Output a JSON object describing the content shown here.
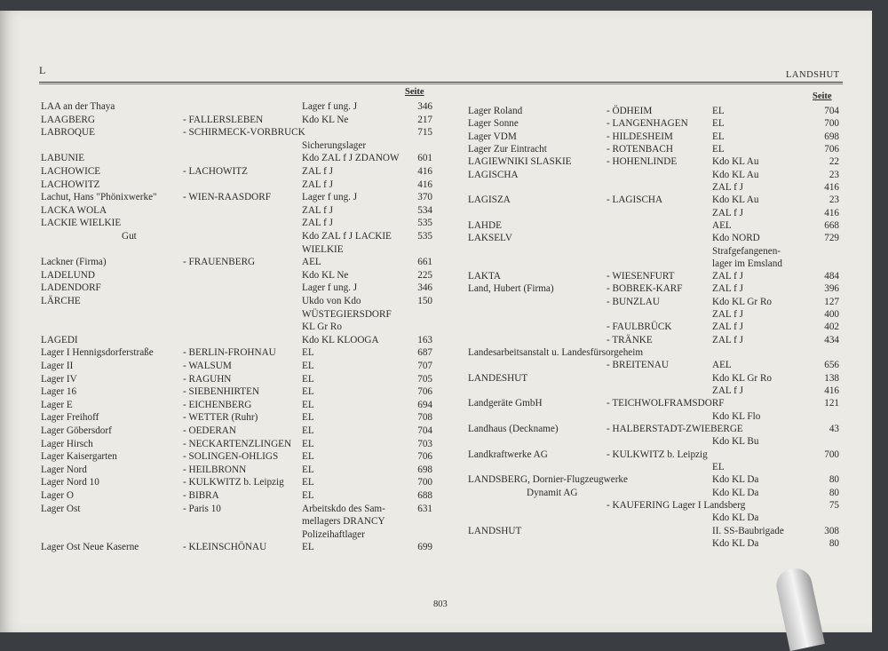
{
  "header": {
    "letter": "L",
    "running_head": "LANDSHUT"
  },
  "column_header": "Seite",
  "footer": {
    "page_number": "803"
  },
  "left_column": [
    [
      "LAA an der Thaya",
      "",
      "Lager f ung. J",
      "346"
    ],
    [
      "LAAGBERG",
      "- FALLERSLEBEN",
      "Kdo KL Ne",
      "217"
    ],
    [
      "LABROQUE",
      "- SCHIRMECK-VORBRUCK",
      "",
      "715"
    ],
    [
      "",
      "",
      "Sicherungslager",
      ""
    ],
    [
      "LABUNIE",
      "",
      "Kdo ZAL f J ZDANOW",
      "601"
    ],
    [
      "LACHOWICE",
      "- LACHOWITZ",
      "ZAL f J",
      "416"
    ],
    [
      "LACHOWITZ",
      "",
      "ZAL f J",
      "416"
    ],
    [
      "Lachut, Hans \"Phönixwerke\"",
      "- WIEN-RAASDORF",
      "Lager f ung. J",
      "370"
    ],
    [
      "LACKA WOLA",
      "",
      "ZAL f J",
      "534"
    ],
    [
      "LACKIE WIELKIE",
      "",
      "ZAL f J",
      "535"
    ],
    [
      "Gut",
      "",
      "Kdo ZAL f J LACKIE",
      "535"
    ],
    [
      "",
      "",
      "WIELKIE",
      ""
    ],
    [
      "Lackner (Firma)",
      "- FRAUENBERG",
      "AEL",
      "661"
    ],
    [
      "LADELUND",
      "",
      "Kdo KL Ne",
      "225"
    ],
    [
      "LADENDORF",
      "",
      "Lager f ung. J",
      "346"
    ],
    [
      "LÄRCHE",
      "",
      "Ukdo von Kdo",
      "150"
    ],
    [
      "",
      "",
      "WÜSTEGIERSDORF",
      ""
    ],
    [
      "",
      "",
      "KL Gr Ro",
      ""
    ],
    [
      "LAGEDI",
      "",
      "Kdo KL KLOOGA",
      "163"
    ],
    [
      "Lager I Hennigsdorferstraße",
      "- BERLIN-FROHNAU",
      "EL",
      "687"
    ],
    [
      "Lager II",
      "- WALSUM",
      "EL",
      "707"
    ],
    [
      "Lager IV",
      "- RAGUHN",
      "EL",
      "705"
    ],
    [
      "Lager 16",
      "- SIEBENHIRTEN",
      "EL",
      "706"
    ],
    [
      "Lager E",
      "- EICHENBERG",
      "EL",
      "694"
    ],
    [
      "Lager Freihoff",
      "- WETTER (Ruhr)",
      "EL",
      "708"
    ],
    [
      "Lager Göbersdorf",
      "- OEDERAN",
      "EL",
      "704"
    ],
    [
      "Lager Hirsch",
      "- NECKARTENZLINGEN",
      "EL",
      "703"
    ],
    [
      "Lager Kaisergarten",
      "- SOLINGEN-OHLIGS",
      "EL",
      "706"
    ],
    [
      "Lager Nord",
      "- HEILBRONN",
      "EL",
      "698"
    ],
    [
      "Lager Nord 10",
      "- KULKWITZ b. Leipzig",
      "EL",
      "700"
    ],
    [
      "Lager O",
      "- BIBRA",
      "EL",
      "688"
    ],
    [
      "Lager Ost",
      "- Paris 10",
      "Arbeitskdo des Sam-",
      "631"
    ],
    [
      "",
      "",
      "mellagers DRANCY",
      ""
    ],
    [
      "",
      "",
      "Polizeihaftlager",
      ""
    ],
    [
      "Lager  Ost Neue Kaserne",
      "- KLEINSCHÖNAU",
      "EL",
      "699"
    ]
  ],
  "right_column": [
    [
      "Lager Roland",
      "- ÖDHEIM",
      "EL",
      "704"
    ],
    [
      "Lager Sonne",
      "- LANGENHAGEN",
      "EL",
      "700"
    ],
    [
      "Lager VDM",
      "- HILDESHEIM",
      "EL",
      "698"
    ],
    [
      "Lager Zur Eintracht",
      "- ROTENBACH",
      "EL",
      "706"
    ],
    [
      "LAGIEWNIKI SLASKIE",
      "- HOHENLINDE",
      "Kdo KL Au",
      "22"
    ],
    [
      "LAGISCHA",
      "",
      "Kdo KL Au",
      "23"
    ],
    [
      "",
      "",
      "ZAL f J",
      "416"
    ],
    [
      "LAGISZA",
      "- LAGISCHA",
      "Kdo KL Au",
      "23"
    ],
    [
      "",
      "",
      "ZAL f J",
      "416"
    ],
    [
      "LAHDE",
      "",
      "AEL",
      "668"
    ],
    [
      "LAKSELV",
      "",
      "Kdo NORD",
      "729"
    ],
    [
      "",
      "",
      "Strafgefangenen-",
      ""
    ],
    [
      "",
      "",
      "lager im Emsland",
      ""
    ],
    [
      "LAKTA",
      "- WIESENFURT",
      "ZAL f J",
      "484"
    ],
    [
      "Land, Hubert (Firma)",
      "- BOBREK-KARF",
      "ZAL f J",
      "396"
    ],
    [
      "",
      "- BUNZLAU",
      "Kdo KL Gr Ro",
      "127"
    ],
    [
      "",
      "",
      "ZAL f J",
      "400"
    ],
    [
      "",
      "- FAULBRÜCK",
      "ZAL f J",
      "402"
    ],
    [
      "",
      "- TRÄNKE",
      "ZAL f J",
      "434"
    ],
    [
      "Landesarbeitsanstalt u. Landesfürsorgeheim",
      "",
      "",
      ""
    ],
    [
      "",
      "- BREITENAU",
      "AEL",
      "656"
    ],
    [
      "LANDESHUT",
      "",
      "Kdo KL Gr Ro",
      "138"
    ],
    [
      "",
      "",
      "ZAL f J",
      "416"
    ],
    [
      "Landgeräte GmbH",
      "- TEICHWOLFRAMSDORF",
      "",
      "121"
    ],
    [
      "",
      "",
      "Kdo KL Flo",
      ""
    ],
    [
      "Landhaus (Deckname)",
      "- HALBERSTADT-ZWIEBERGE",
      "",
      "43"
    ],
    [
      "",
      "",
      "Kdo KL Bu",
      ""
    ],
    [
      "Landkraftwerke  AG",
      "- KULKWITZ b. Leipzig",
      "",
      "700"
    ],
    [
      "",
      "",
      "EL",
      ""
    ],
    [
      "LANDSBERG, Dornier-Flugzeugwerke",
      "",
      "Kdo KL Da",
      "80"
    ],
    [
      "Dynamit AG",
      "",
      "Kdo KL Da",
      "80"
    ],
    [
      "",
      "- KAUFERING Lager I Landsberg",
      "",
      "75"
    ],
    [
      "",
      "",
      "Kdo KL Da",
      ""
    ],
    [
      "LANDSHUT",
      "",
      "II. SS-Baubrigade",
      "308"
    ],
    [
      "",
      "",
      "Kdo KL Da",
      "80"
    ]
  ]
}
